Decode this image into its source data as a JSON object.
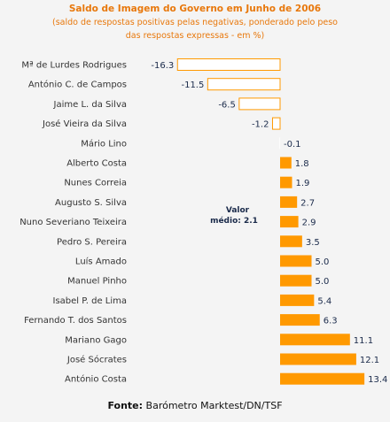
{
  "chart_data": {
    "type": "bar",
    "orientation": "horizontal",
    "title": "Saldo de Imagem do Governo em Junho de 2006",
    "subtitle_line1": "(saldo de respostas positivas pelas negativas,  ponderado pelo peso",
    "subtitle_line2": "das respostas expressas - em %)",
    "categories": [
      "Mª de Lurdes Rodrigues",
      "António C. de Campos",
      "Jaime L. da Silva",
      "José Vieira da Silva",
      "Mário Lino",
      "Alberto Costa",
      "Nunes Correia",
      "Augusto S. Silva",
      "Nuno Severiano Teixeira",
      "Pedro S. Pereira",
      "Luís Amado",
      "Manuel Pinho",
      "Isabel P. de Lima",
      "Fernando T. dos Santos",
      "Mariano Gago",
      "José Sócrates",
      "António Costa"
    ],
    "values": [
      -16.3,
      -11.5,
      -6.5,
      -1.2,
      -0.1,
      1.8,
      1.9,
      2.7,
      2.9,
      3.5,
      5.0,
      5.0,
      5.4,
      6.3,
      11.1,
      12.1,
      13.4
    ],
    "value_labels": [
      "-16.3",
      "-11.5",
      "-6.5",
      "-1.2",
      "-0.1",
      "1.8",
      "1.9",
      "2.7",
      "2.9",
      "3.5",
      "5.0",
      "5.0",
      "5.4",
      "6.3",
      "11.1",
      "12.1",
      "13.4"
    ],
    "average_label_line1": "Valor",
    "average_label_line2": "médio:  2.1",
    "average_value": 2.1,
    "xlim": [
      -16.3,
      13.4
    ],
    "colors": {
      "positive": "#ff9900",
      "negative_fill": "#ffffff",
      "negative_stroke": "#ff9900",
      "title": "#e8780c"
    }
  },
  "source": {
    "prefix": "Fonte:",
    "text": " Barómetro Marktest/DN/TSF"
  }
}
